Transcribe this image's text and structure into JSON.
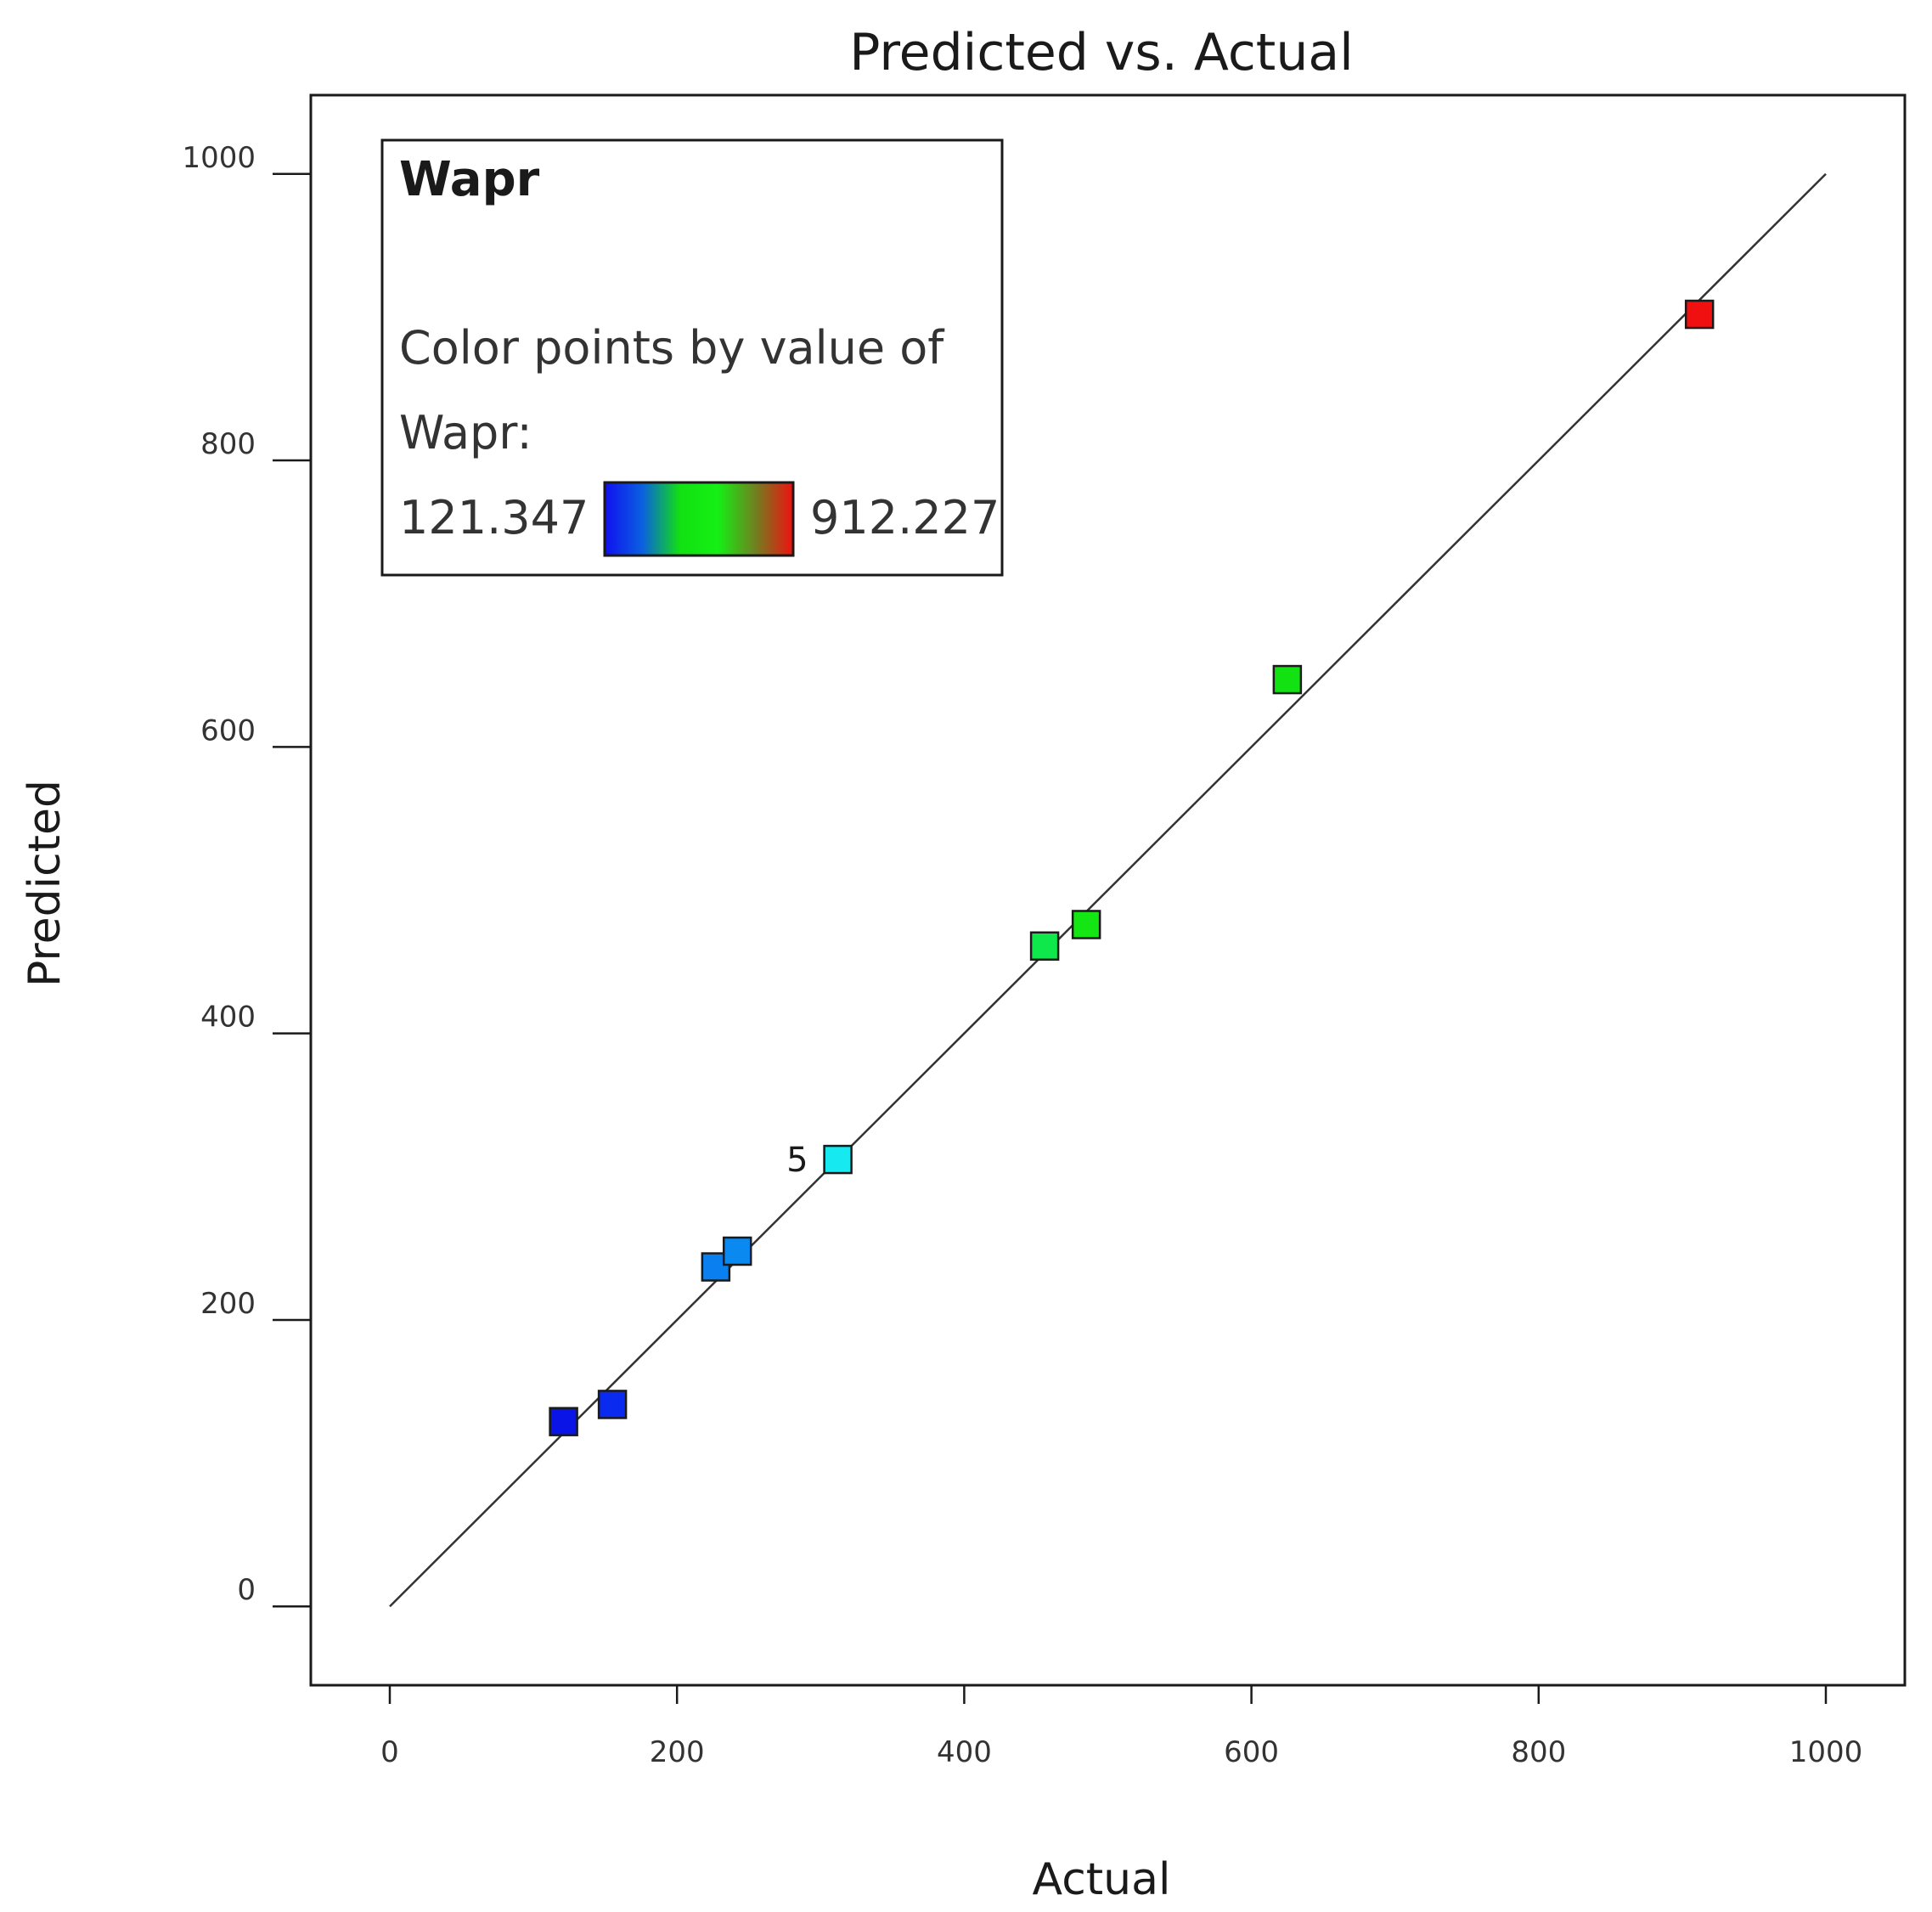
{
  "chart_data": {
    "type": "scatter",
    "title": "Predicted vs. Actual",
    "xlabel": "Actual",
    "ylabel": "Predicted",
    "xlim": [
      -55,
      1055
    ],
    "ylim": [
      -55,
      1055
    ],
    "xticks": [
      "0",
      "200",
      "400",
      "600",
      "800",
      "1000"
    ],
    "yticks": [
      "0",
      "200",
      "400",
      "600",
      "800",
      "1000"
    ],
    "reference_line": {
      "from": [
        0,
        0
      ],
      "to": [
        1000,
        1000
      ]
    },
    "points": [
      {
        "x": 121,
        "y": 129,
        "color": "#0a14e6"
      },
      {
        "x": 155,
        "y": 141,
        "color": "#0a2af0"
      },
      {
        "x": 227,
        "y": 237,
        "color": "#0a7ff0"
      },
      {
        "x": 242,
        "y": 248,
        "color": "#0a8af0"
      },
      {
        "x": 312,
        "y": 312,
        "color": "#16eaf0",
        "label": "5"
      },
      {
        "x": 456,
        "y": 461,
        "color": "#0ee84a"
      },
      {
        "x": 485,
        "y": 476,
        "color": "#14e614"
      },
      {
        "x": 625,
        "y": 647,
        "color": "#12e212"
      },
      {
        "x": 912,
        "y": 902,
        "color": "#f01010"
      }
    ],
    "legend": {
      "title": "Wapr",
      "line1": "Color points by value  of",
      "line2": "Wapr:",
      "min_label": "121.347",
      "max_label": "912.227",
      "gradient": [
        "#1010f0",
        "#0a60e0",
        "#12e012",
        "#14f014",
        "#708020",
        "#f01010"
      ]
    }
  }
}
